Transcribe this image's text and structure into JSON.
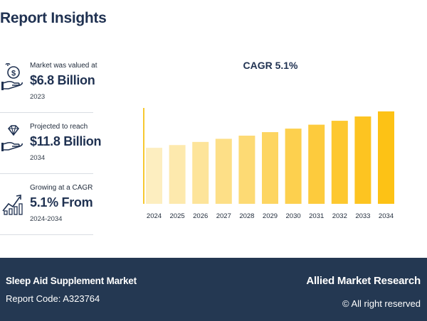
{
  "header": {
    "title": "Report Insights"
  },
  "stats": [
    {
      "label": "Market was valued at",
      "value": "$6.8 Billion",
      "year": "2023",
      "icon": "money-hand-icon"
    },
    {
      "label": "Projected to reach",
      "value": "$11.8 Billion",
      "year": "2034",
      "icon": "diamond-hand-icon"
    },
    {
      "label": "Growing at a CAGR",
      "value": "5.1% From",
      "year": "2024-2034",
      "icon": "growth-chart-icon"
    }
  ],
  "chart_data": {
    "type": "bar",
    "title": "CAGR 5.1%",
    "categories": [
      "2024",
      "2025",
      "2026",
      "2027",
      "2028",
      "2029",
      "2030",
      "2031",
      "2032",
      "2033",
      "2034"
    ],
    "values": [
      7.15,
      7.5,
      7.9,
      8.3,
      8.7,
      9.15,
      9.6,
      10.1,
      10.6,
      11.15,
      11.8
    ],
    "colors": [
      "#fdeec0",
      "#fde9ad",
      "#fde49a",
      "#fddf87",
      "#fdda74",
      "#fdd561",
      "#fdd04e",
      "#fdcb3d",
      "#fdc82f",
      "#fdc421",
      "#fdc215"
    ],
    "axis_color": "#f7c830",
    "ylim": [
      0,
      12.6
    ],
    "grid": false
  },
  "footer": {
    "market": "Sleep Aid Supplement Market",
    "report_code": "Report Code: A323764",
    "brand": "Allied Market Research",
    "rights": "© All right reserved"
  }
}
